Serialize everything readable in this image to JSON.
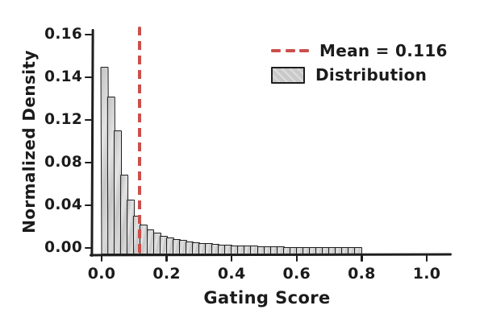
{
  "figure": {
    "background": "#ffffff",
    "ink_color": "#1e1e1e",
    "bar_fill": "#c9c9c9",
    "bar_edge": "#1e1e1e",
    "mean_line_color": "#cc4f4b"
  },
  "chart_data": {
    "type": "bar",
    "subtype": "histogram",
    "style": "xkcd-hand-drawn",
    "title": "",
    "xlabel": "Gating Score",
    "ylabel": "Normalized Density",
    "x_ticks": [
      "0.0",
      "0.2",
      "0.4",
      "0.6",
      "0.8",
      "1.0"
    ],
    "x_tick_values": [
      0.0,
      0.2,
      0.4,
      0.6,
      0.8,
      1.0
    ],
    "y_ticks": [
      "0.00",
      "0.04",
      "0.08",
      "0.12",
      "0.14",
      "0.16"
    ],
    "y_tick_values": [
      0.0,
      0.04,
      0.08,
      0.12,
      0.14,
      0.16
    ],
    "xlim": [
      0.0,
      1.05
    ],
    "grid": false,
    "bin_start": 0.0,
    "bin_width": 0.02,
    "values": [
      0.145,
      0.131,
      0.11,
      0.069,
      0.045,
      0.03,
      0.022,
      0.017,
      0.014,
      0.0115,
      0.0095,
      0.0082,
      0.0072,
      0.0063,
      0.0055,
      0.0048,
      0.0042,
      0.0037,
      0.0033,
      0.0029,
      0.0026,
      0.0023,
      0.0021,
      0.0019,
      0.0017,
      0.0015,
      0.0014,
      0.0012,
      0.0011,
      0.001,
      0.0009,
      0.0008,
      0.00075,
      0.0007,
      0.00065,
      0.0006,
      0.00055,
      0.0005,
      0.00045,
      0.0004
    ],
    "mean": 0.116,
    "legend_position": "upper right",
    "legend": [
      {
        "label": "Mean = 0.116",
        "type": "dashed-line",
        "color": "#cc4f4b"
      },
      {
        "label": "Distribution",
        "type": "hatched-box",
        "color": "#c9c9c9"
      }
    ]
  }
}
